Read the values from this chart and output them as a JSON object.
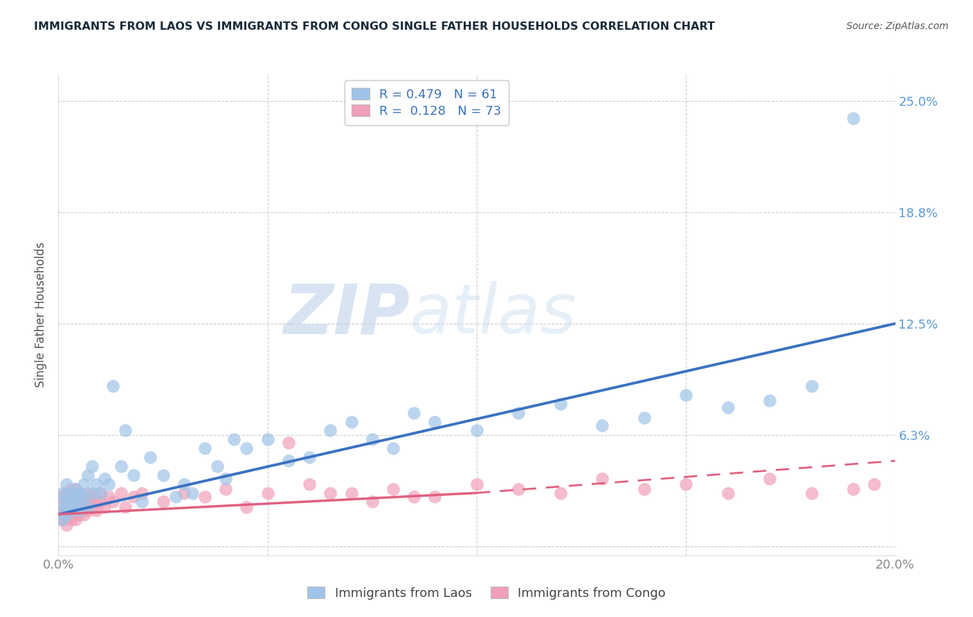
{
  "title": "IMMIGRANTS FROM LAOS VS IMMIGRANTS FROM CONGO SINGLE FATHER HOUSEHOLDS CORRELATION CHART",
  "source": "Source: ZipAtlas.com",
  "ylabel": "Single Father Households",
  "xlim": [
    0.0,
    0.2
  ],
  "ylim": [
    -0.005,
    0.265
  ],
  "yticks": [
    0.0,
    0.0625,
    0.125,
    0.1875,
    0.25
  ],
  "ytick_labels": [
    "",
    "6.3%",
    "12.5%",
    "18.8%",
    "25.0%"
  ],
  "xticks": [
    0.0,
    0.05,
    0.1,
    0.15,
    0.2
  ],
  "xtick_labels": [
    "0.0%",
    "",
    "",
    "",
    "20.0%"
  ],
  "laos_R": 0.479,
  "laos_N": 61,
  "congo_R": 0.128,
  "congo_N": 73,
  "laos_color": "#a0c4e8",
  "congo_color": "#f0a0b8",
  "laos_line_color": "#3a72c0",
  "congo_line_color": "#e06080",
  "legend_label1": "Immigrants from Laos",
  "legend_label2": "Immigrants from Congo",
  "watermark_zip": "ZIP",
  "watermark_atlas": "atlas",
  "background_color": "#ffffff",
  "grid_color": "#cccccc",
  "title_color": "#1a2a3a",
  "source_color": "#555555",
  "axis_label_color": "#555555",
  "tick_color": "#888888",
  "right_tick_color": "#5a9ad5",
  "laos_x": [
    0.001,
    0.001,
    0.001,
    0.001,
    0.002,
    0.002,
    0.002,
    0.002,
    0.003,
    0.003,
    0.003,
    0.004,
    0.004,
    0.004,
    0.005,
    0.005,
    0.005,
    0.006,
    0.006,
    0.007,
    0.007,
    0.008,
    0.008,
    0.009,
    0.01,
    0.011,
    0.012,
    0.013,
    0.015,
    0.016,
    0.018,
    0.02,
    0.022,
    0.025,
    0.028,
    0.03,
    0.032,
    0.035,
    0.038,
    0.04,
    0.042,
    0.045,
    0.05,
    0.055,
    0.06,
    0.065,
    0.07,
    0.075,
    0.08,
    0.085,
    0.09,
    0.1,
    0.11,
    0.12,
    0.13,
    0.14,
    0.15,
    0.16,
    0.17,
    0.18,
    0.19
  ],
  "laos_y": [
    0.02,
    0.025,
    0.015,
    0.03,
    0.022,
    0.028,
    0.018,
    0.035,
    0.025,
    0.03,
    0.02,
    0.028,
    0.022,
    0.032,
    0.025,
    0.03,
    0.02,
    0.028,
    0.035,
    0.022,
    0.04,
    0.03,
    0.045,
    0.035,
    0.03,
    0.038,
    0.035,
    0.09,
    0.045,
    0.065,
    0.04,
    0.025,
    0.05,
    0.04,
    0.028,
    0.035,
    0.03,
    0.055,
    0.045,
    0.038,
    0.06,
    0.055,
    0.06,
    0.048,
    0.05,
    0.065,
    0.07,
    0.06,
    0.055,
    0.075,
    0.07,
    0.065,
    0.075,
    0.08,
    0.068,
    0.072,
    0.085,
    0.078,
    0.082,
    0.09,
    0.24
  ],
  "congo_x": [
    0.001,
    0.001,
    0.001,
    0.001,
    0.001,
    0.002,
    0.002,
    0.002,
    0.002,
    0.002,
    0.002,
    0.002,
    0.003,
    0.003,
    0.003,
    0.003,
    0.003,
    0.003,
    0.004,
    0.004,
    0.004,
    0.004,
    0.004,
    0.004,
    0.005,
    0.005,
    0.005,
    0.005,
    0.005,
    0.006,
    0.006,
    0.006,
    0.007,
    0.007,
    0.007,
    0.008,
    0.008,
    0.009,
    0.009,
    0.01,
    0.01,
    0.011,
    0.012,
    0.013,
    0.015,
    0.016,
    0.018,
    0.02,
    0.025,
    0.03,
    0.035,
    0.04,
    0.05,
    0.06,
    0.07,
    0.08,
    0.09,
    0.1,
    0.11,
    0.12,
    0.13,
    0.14,
    0.15,
    0.16,
    0.17,
    0.18,
    0.19,
    0.195,
    0.065,
    0.055,
    0.075,
    0.085,
    0.045
  ],
  "congo_y": [
    0.018,
    0.022,
    0.015,
    0.028,
    0.02,
    0.012,
    0.025,
    0.018,
    0.03,
    0.022,
    0.016,
    0.028,
    0.02,
    0.032,
    0.018,
    0.025,
    0.015,
    0.022,
    0.028,
    0.02,
    0.018,
    0.032,
    0.025,
    0.015,
    0.022,
    0.03,
    0.018,
    0.025,
    0.02,
    0.028,
    0.022,
    0.018,
    0.025,
    0.03,
    0.02,
    0.022,
    0.028,
    0.025,
    0.02,
    0.03,
    0.025,
    0.022,
    0.028,
    0.025,
    0.03,
    0.022,
    0.028,
    0.03,
    0.025,
    0.03,
    0.028,
    0.032,
    0.03,
    0.035,
    0.03,
    0.032,
    0.028,
    0.035,
    0.032,
    0.03,
    0.038,
    0.032,
    0.035,
    0.03,
    0.038,
    0.03,
    0.032,
    0.035,
    0.03,
    0.058,
    0.025,
    0.028,
    0.022
  ]
}
